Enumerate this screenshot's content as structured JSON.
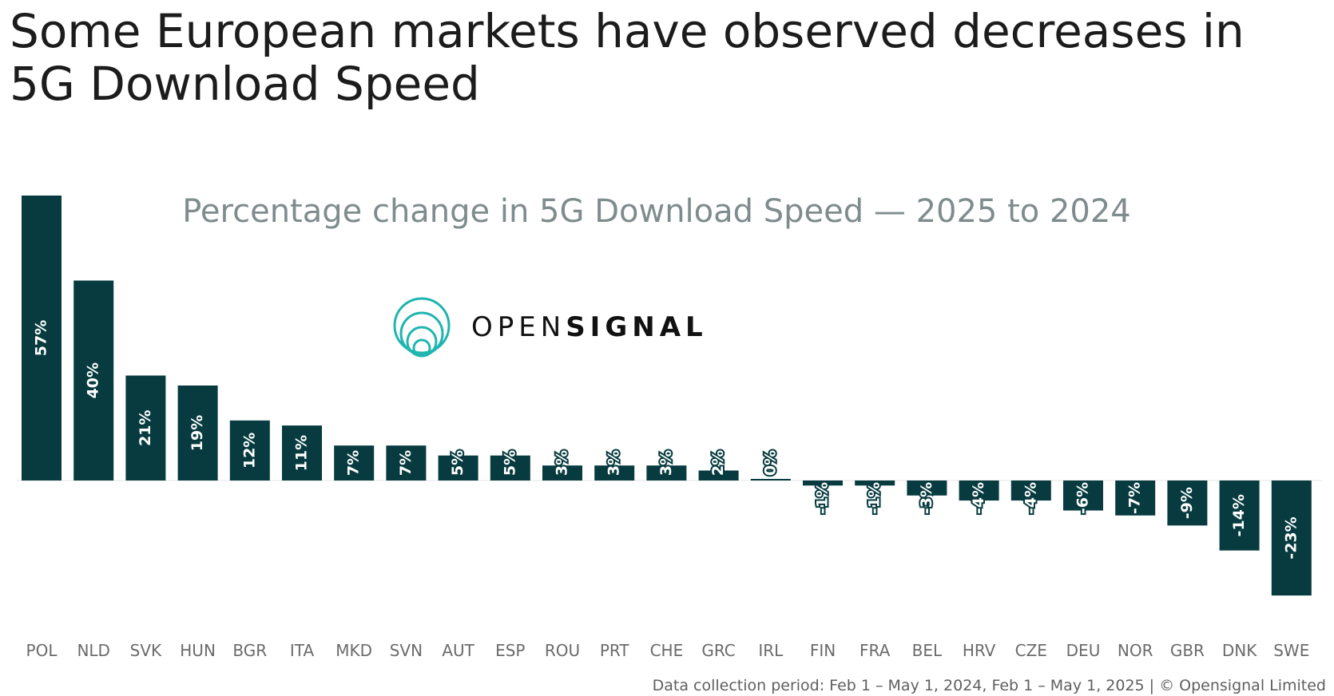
{
  "headline": "Some European markets have observed decreases in 5G Download Speed",
  "brand": {
    "part1": "OPEN",
    "part2": "SIGNAL"
  },
  "footer": "Data collection period: Feb 1 – May 1, 2024, Feb 1 – May 1, 2025 | © Opensignal Limited",
  "colors": {
    "bar": "#073b3f",
    "logo": "#1fb5b0",
    "subtitle": "#7f8c8d"
  },
  "chart_data": {
    "type": "bar",
    "title": "Percentage change in 5G Download Speed — 2025 to 2024",
    "categories": [
      "POL",
      "NLD",
      "SVK",
      "HUN",
      "BGR",
      "ITA",
      "MKD",
      "SVN",
      "AUT",
      "ESP",
      "ROU",
      "PRT",
      "CHE",
      "GRC",
      "IRL",
      "FIN",
      "FRA",
      "BEL",
      "HRV",
      "CZE",
      "DEU",
      "NOR",
      "GBR",
      "DNK",
      "SWE"
    ],
    "values": [
      57,
      40,
      21,
      19,
      12,
      11,
      7,
      7,
      5,
      5,
      3,
      3,
      3,
      2,
      0,
      -1,
      -1,
      -3,
      -4,
      -4,
      -6,
      -7,
      -9,
      -14,
      -23
    ],
    "labels": [
      "57%",
      "40%",
      "21%",
      "19%",
      "12%",
      "11%",
      "7%",
      "7%",
      "5%",
      "5%",
      "3%",
      "3%",
      "3%",
      "2%",
      "0%",
      "-1%",
      "-1%",
      "-3%",
      "-4%",
      "-4%",
      "-6%",
      "-7%",
      "-9%",
      "-14%",
      "-23%"
    ],
    "ylim": [
      -28,
      57
    ],
    "grid": false,
    "legend": "none"
  }
}
